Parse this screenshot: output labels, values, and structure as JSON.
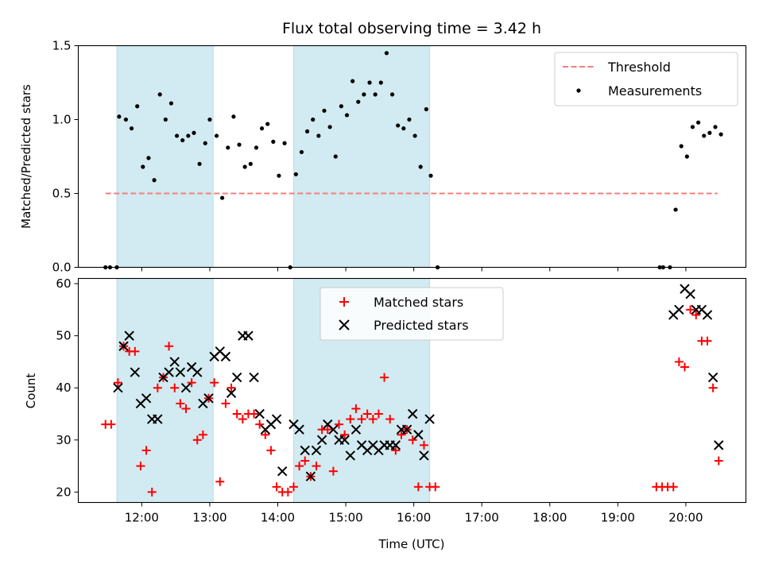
{
  "chart_data": [
    {
      "type": "scatter",
      "title": "Flux total observing time = 3.42 h",
      "xlabel": "",
      "ylabel": "Matched/Predicted stars",
      "xlim": [
        "11:04",
        "20:53"
      ],
      "ylim": [
        0,
        1.5
      ],
      "yticks": [
        "0.0",
        "0.5",
        "1.0",
        "1.5"
      ],
      "grid": false,
      "legend_position": "top-right",
      "shaded_intervals": [
        [
          "11:38",
          "13:03"
        ],
        [
          "14:14",
          "16:14"
        ]
      ],
      "shade_color": "#add8e6",
      "threshold": {
        "name": "Threshold",
        "value": 0.5,
        "x_start": "11:28",
        "x_end": "20:28",
        "color": "#f08080"
      },
      "series": [
        {
          "name": "Measurements",
          "marker": "dot",
          "color": "#000000",
          "points": [
            [
              "11:28",
              0.0
            ],
            [
              "11:32",
              0.0
            ],
            [
              "11:38",
              0.0
            ],
            [
              "11:40",
              1.02
            ],
            [
              "11:46",
              1.0
            ],
            [
              "11:51",
              0.94
            ],
            [
              "11:56",
              1.09
            ],
            [
              "12:01",
              0.68
            ],
            [
              "12:06",
              0.74
            ],
            [
              "12:11",
              0.59
            ],
            [
              "12:16",
              1.17
            ],
            [
              "12:21",
              1.0
            ],
            [
              "12:26",
              1.11
            ],
            [
              "12:31",
              0.89
            ],
            [
              "12:36",
              0.86
            ],
            [
              "12:41",
              0.89
            ],
            [
              "12:46",
              0.91
            ],
            [
              "12:51",
              0.7
            ],
            [
              "12:56",
              0.84
            ],
            [
              "13:00",
              1.0
            ],
            [
              "13:06",
              0.89
            ],
            [
              "13:11",
              0.47
            ],
            [
              "13:16",
              0.81
            ],
            [
              "13:21",
              1.02
            ],
            [
              "13:26",
              0.83
            ],
            [
              "13:31",
              0.68
            ],
            [
              "13:36",
              0.7
            ],
            [
              "13:41",
              0.81
            ],
            [
              "13:46",
              0.94
            ],
            [
              "13:51",
              0.97
            ],
            [
              "13:56",
              0.85
            ],
            [
              "14:01",
              0.62
            ],
            [
              "14:06",
              0.84
            ],
            [
              "14:11",
              0.0
            ],
            [
              "14:16",
              0.63
            ],
            [
              "14:21",
              0.78
            ],
            [
              "14:26",
              0.92
            ],
            [
              "14:31",
              1.0
            ],
            [
              "14:36",
              0.89
            ],
            [
              "14:41",
              1.06
            ],
            [
              "14:46",
              0.95
            ],
            [
              "14:51",
              0.75
            ],
            [
              "14:56",
              1.09
            ],
            [
              "15:01",
              1.03
            ],
            [
              "15:06",
              1.26
            ],
            [
              "15:11",
              1.12
            ],
            [
              "15:16",
              1.17
            ],
            [
              "15:21",
              1.25
            ],
            [
              "15:26",
              1.17
            ],
            [
              "15:31",
              1.25
            ],
            [
              "15:36",
              1.45
            ],
            [
              "15:41",
              1.17
            ],
            [
              "15:46",
              0.96
            ],
            [
              "15:51",
              0.94
            ],
            [
              "15:56",
              1.0
            ],
            [
              "16:01",
              0.89
            ],
            [
              "16:06",
              0.68
            ],
            [
              "16:11",
              1.07
            ],
            [
              "16:15",
              0.62
            ],
            [
              "16:21",
              0.0
            ],
            [
              "19:37",
              0.0
            ],
            [
              "19:40",
              0.0
            ],
            [
              "19:46",
              0.0
            ],
            [
              "19:51",
              0.39
            ],
            [
              "19:56",
              0.82
            ],
            [
              "20:01",
              0.75
            ],
            [
              "20:06",
              0.95
            ],
            [
              "20:11",
              0.98
            ],
            [
              "20:16",
              0.89
            ],
            [
              "20:21",
              0.91
            ],
            [
              "20:26",
              0.95
            ],
            [
              "20:31",
              0.9
            ]
          ]
        }
      ]
    },
    {
      "type": "scatter",
      "title": "",
      "xlabel": "Time (UTC)",
      "ylabel": "Count",
      "xlim": [
        "11:04",
        "20:53"
      ],
      "ylim": [
        18,
        61
      ],
      "yticks": [
        "20",
        "30",
        "40",
        "50",
        "60"
      ],
      "xticks": [
        "12:00",
        "13:00",
        "14:00",
        "15:00",
        "16:00",
        "17:00",
        "18:00",
        "19:00",
        "20:00"
      ],
      "grid": false,
      "legend_position": "top-center",
      "shaded_intervals": [
        [
          "11:38",
          "13:03"
        ],
        [
          "14:14",
          "16:14"
        ]
      ],
      "shade_color": "#add8e6",
      "series": [
        {
          "name": "Matched stars",
          "marker": "plus",
          "color": "#ff0000",
          "points": [
            [
              "11:28",
              33
            ],
            [
              "11:33",
              33
            ],
            [
              "11:39",
              41
            ],
            [
              "11:44",
              48
            ],
            [
              "11:49",
              47
            ],
            [
              "11:54",
              47
            ],
            [
              "11:59",
              25
            ],
            [
              "12:04",
              28
            ],
            [
              "12:09",
              20
            ],
            [
              "12:14",
              40
            ],
            [
              "12:19",
              42
            ],
            [
              "12:24",
              48
            ],
            [
              "12:29",
              40
            ],
            [
              "12:34",
              37
            ],
            [
              "12:39",
              36
            ],
            [
              "12:44",
              41
            ],
            [
              "12:49",
              30
            ],
            [
              "12:54",
              31
            ],
            [
              "12:59",
              38
            ],
            [
              "13:04",
              41
            ],
            [
              "13:09",
              22
            ],
            [
              "13:14",
              37
            ],
            [
              "13:19",
              40
            ],
            [
              "13:24",
              35
            ],
            [
              "13:29",
              34
            ],
            [
              "13:34",
              35
            ],
            [
              "13:39",
              35
            ],
            [
              "13:44",
              33
            ],
            [
              "13:49",
              31
            ],
            [
              "13:54",
              28
            ],
            [
              "13:59",
              21
            ],
            [
              "14:04",
              20
            ],
            [
              "14:09",
              20
            ],
            [
              "14:14",
              21
            ],
            [
              "14:19",
              25
            ],
            [
              "14:24",
              26
            ],
            [
              "14:29",
              23
            ],
            [
              "14:34",
              25
            ],
            [
              "14:39",
              32
            ],
            [
              "14:44",
              32
            ],
            [
              "14:49",
              24
            ],
            [
              "14:54",
              33
            ],
            [
              "14:59",
              31
            ],
            [
              "15:04",
              34
            ],
            [
              "15:09",
              36
            ],
            [
              "15:14",
              34
            ],
            [
              "15:19",
              35
            ],
            [
              "15:24",
              34
            ],
            [
              "15:29",
              35
            ],
            [
              "15:34",
              42
            ],
            [
              "15:39",
              34
            ],
            [
              "15:44",
              28
            ],
            [
              "15:49",
              31
            ],
            [
              "15:54",
              32
            ],
            [
              "15:59",
              30
            ],
            [
              "16:04",
              21
            ],
            [
              "16:09",
              29
            ],
            [
              "16:14",
              21
            ],
            [
              "16:19",
              21
            ],
            [
              "19:34",
              21
            ],
            [
              "19:39",
              21
            ],
            [
              "19:44",
              21
            ],
            [
              "19:49",
              21
            ],
            [
              "19:54",
              45
            ],
            [
              "19:59",
              44
            ],
            [
              "20:04",
              55
            ],
            [
              "20:09",
              54
            ],
            [
              "20:14",
              49
            ],
            [
              "20:19",
              49
            ],
            [
              "20:24",
              40
            ],
            [
              "20:29",
              26
            ]
          ]
        },
        {
          "name": "Predicted stars",
          "marker": "x",
          "color": "#000000",
          "points": [
            [
              "11:39",
              40
            ],
            [
              "11:44",
              48
            ],
            [
              "11:49",
              50
            ],
            [
              "11:54",
              43
            ],
            [
              "11:59",
              37
            ],
            [
              "12:04",
              38
            ],
            [
              "12:09",
              34
            ],
            [
              "12:14",
              34
            ],
            [
              "12:19",
              42
            ],
            [
              "12:24",
              43
            ],
            [
              "12:29",
              45
            ],
            [
              "12:34",
              43
            ],
            [
              "12:39",
              40
            ],
            [
              "12:44",
              44
            ],
            [
              "12:49",
              43
            ],
            [
              "12:54",
              37
            ],
            [
              "12:59",
              38
            ],
            [
              "13:04",
              46
            ],
            [
              "13:09",
              47
            ],
            [
              "13:14",
              46
            ],
            [
              "13:19",
              39
            ],
            [
              "13:24",
              42
            ],
            [
              "13:29",
              50
            ],
            [
              "13:34",
              50
            ],
            [
              "13:39",
              42
            ],
            [
              "13:44",
              35
            ],
            [
              "13:49",
              32
            ],
            [
              "13:54",
              33
            ],
            [
              "13:59",
              34
            ],
            [
              "14:04",
              24
            ],
            [
              "14:14",
              33
            ],
            [
              "14:19",
              32
            ],
            [
              "14:24",
              28
            ],
            [
              "14:29",
              23
            ],
            [
              "14:34",
              28
            ],
            [
              "14:39",
              30
            ],
            [
              "14:44",
              33
            ],
            [
              "14:49",
              32
            ],
            [
              "14:54",
              30
            ],
            [
              "14:59",
              30
            ],
            [
              "15:04",
              27
            ],
            [
              "15:09",
              32
            ],
            [
              "15:14",
              29
            ],
            [
              "15:19",
              28
            ],
            [
              "15:24",
              29
            ],
            [
              "15:29",
              28
            ],
            [
              "15:34",
              29
            ],
            [
              "15:39",
              29
            ],
            [
              "15:44",
              29
            ],
            [
              "15:49",
              32
            ],
            [
              "15:54",
              32
            ],
            [
              "15:59",
              35
            ],
            [
              "16:04",
              31
            ],
            [
              "16:09",
              27
            ],
            [
              "16:14",
              34
            ],
            [
              "19:49",
              54
            ],
            [
              "19:54",
              55
            ],
            [
              "19:59",
              59
            ],
            [
              "20:04",
              58
            ],
            [
              "20:09",
              55
            ],
            [
              "20:14",
              55
            ],
            [
              "20:19",
              54
            ],
            [
              "20:24",
              42
            ],
            [
              "20:29",
              29
            ]
          ]
        }
      ]
    }
  ]
}
